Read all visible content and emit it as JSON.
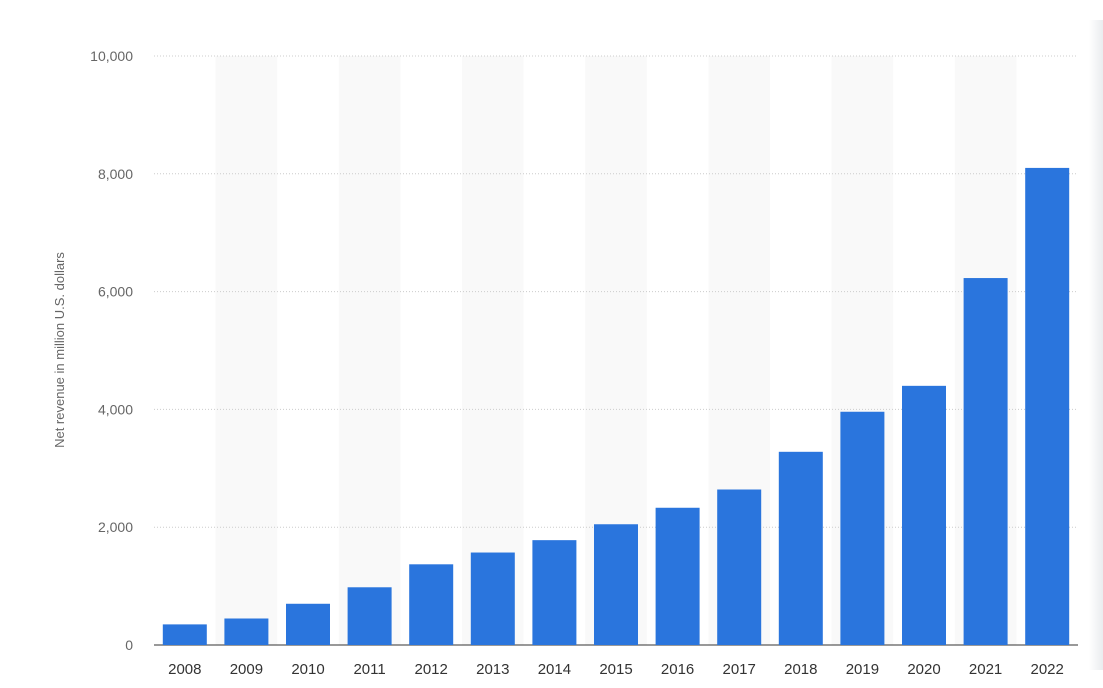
{
  "chart_data": {
    "type": "bar",
    "title": "",
    "xlabel": "",
    "ylabel": "Net revenue in million U.S. dollars",
    "categories": [
      "2008",
      "2009",
      "2010",
      "2011",
      "2012",
      "2013",
      "2014",
      "2015",
      "2016",
      "2017",
      "2018",
      "2019",
      "2020",
      "2021",
      "2022"
    ],
    "values": [
      350,
      450,
      700,
      980,
      1370,
      1570,
      1780,
      2050,
      2330,
      2640,
      3280,
      3960,
      4400,
      6230,
      8100
    ],
    "ylim": [
      0,
      10000
    ],
    "yticks": [
      0,
      2000,
      4000,
      6000,
      8000,
      10000
    ],
    "ytick_labels": [
      "0",
      "2,000",
      "4,000",
      "6,000",
      "8,000",
      "10,000"
    ],
    "grid": true,
    "bar_color": "#2a75dd",
    "band_color": "#f9f9f9",
    "grid_color": "#cccccc",
    "legend": "none"
  }
}
